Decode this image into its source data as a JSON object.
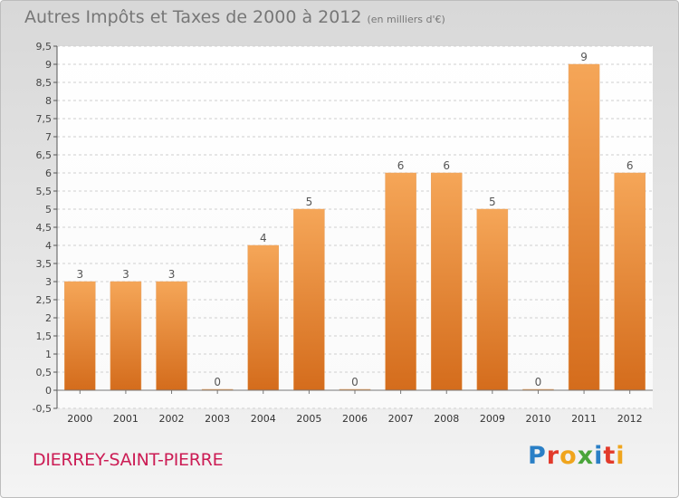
{
  "header": {
    "title": "Autres Impôts et Taxes de 2000 à 2012",
    "subtitle": "(en milliers d'€)"
  },
  "footer": {
    "commune": "DIERREY-SAINT-PIERRE",
    "logo_letters": [
      {
        "ch": "P",
        "color": "#2a7fc6"
      },
      {
        "ch": "r",
        "color": "#e23a2b"
      },
      {
        "ch": "o",
        "color": "#f0a51d"
      },
      {
        "ch": "x",
        "color": "#4aa53a"
      },
      {
        "ch": "i",
        "color": "#2a7fc6"
      },
      {
        "ch": "t",
        "color": "#e23a2b"
      },
      {
        "ch": "i",
        "color": "#f0a51d"
      }
    ]
  },
  "chart_data": {
    "type": "bar",
    "title": "Autres Impôts et Taxes de 2000 à 2012",
    "subtitle": "(en milliers d'€)",
    "categories": [
      "2000",
      "2001",
      "2002",
      "2003",
      "2004",
      "2005",
      "2006",
      "2007",
      "2008",
      "2009",
      "2010",
      "2011",
      "2012"
    ],
    "values": [
      3,
      3,
      3,
      0,
      4,
      5,
      0,
      6,
      6,
      5,
      0,
      9,
      6
    ],
    "data_labels": [
      "3",
      "3",
      "3",
      "0",
      "4",
      "5",
      "0",
      "6",
      "6",
      "5",
      "0",
      "9",
      "6"
    ],
    "ylim": [
      -0.5,
      9.5
    ],
    "yticks": [
      "-0,5",
      "0",
      "0,5",
      "1",
      "1,5",
      "2",
      "2,5",
      "3",
      "3,5",
      "4",
      "4,5",
      "5",
      "5,5",
      "6",
      "6,5",
      "7",
      "7,5",
      "8",
      "8,5",
      "9",
      "9,5"
    ],
    "ytick_values": [
      -0.5,
      0,
      0.5,
      1,
      1.5,
      2,
      2.5,
      3,
      3.5,
      4,
      4.5,
      5,
      5.5,
      6,
      6.5,
      7,
      7.5,
      8,
      8.5,
      9,
      9.5
    ],
    "grid": true,
    "bar_color_top": "#f5a658",
    "bar_color_bottom": "#d46c1c",
    "xlabel": "",
    "ylabel": ""
  }
}
